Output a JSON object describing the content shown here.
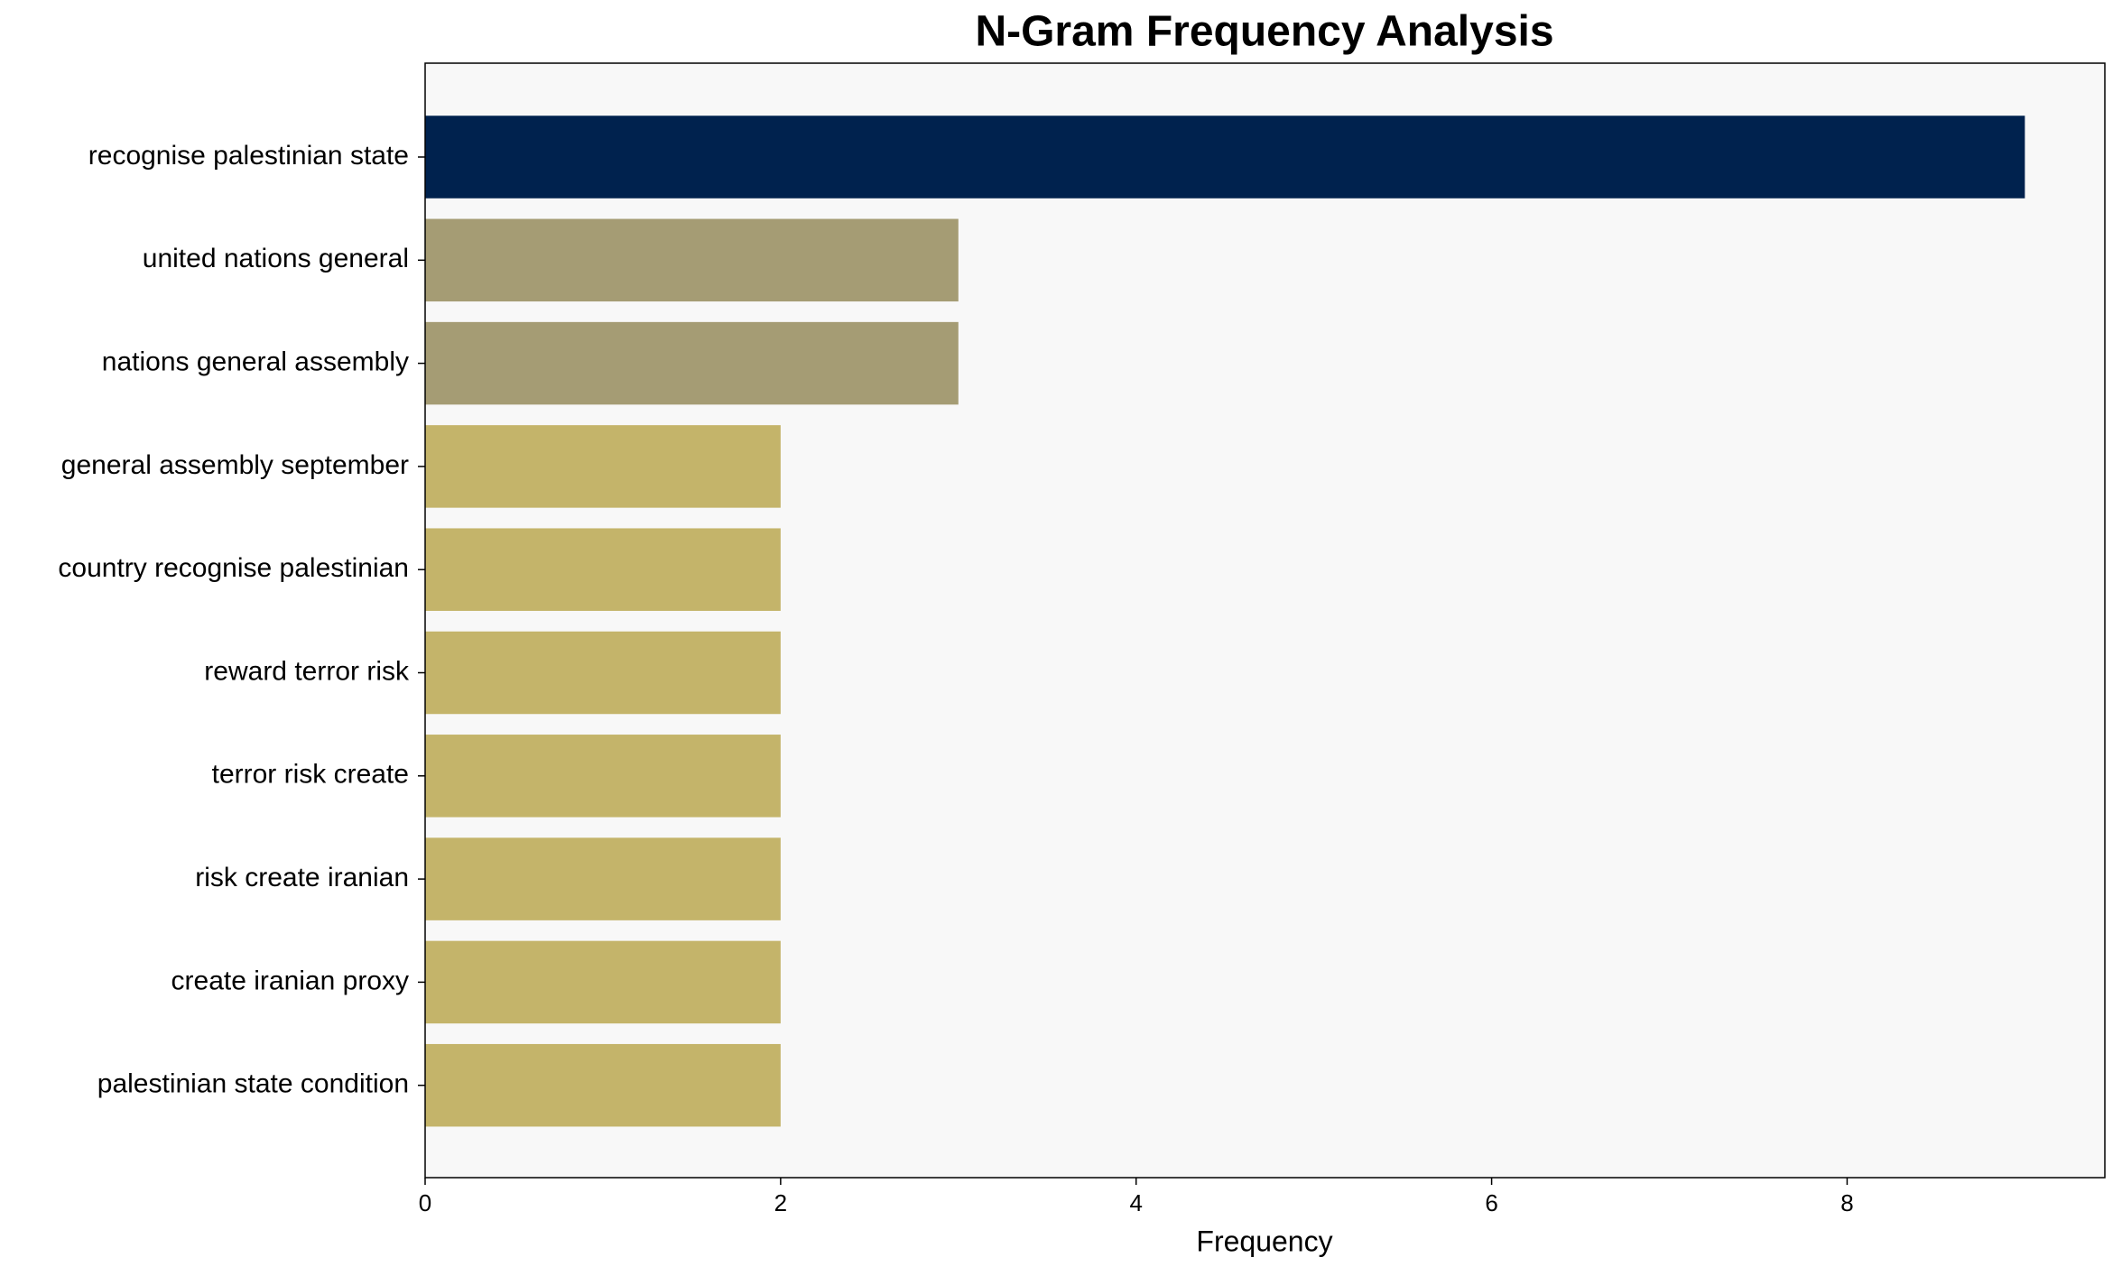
{
  "chart_data": {
    "type": "barh",
    "title": "N-Gram Frequency Analysis",
    "x_label": "Frequency",
    "categories": [
      "recognise palestinian state",
      "united nations general",
      "nations general assembly",
      "general assembly september",
      "country recognise palestinian",
      "reward terror risk",
      "terror risk create",
      "risk create iranian",
      "create iranian proxy",
      "palestinian state condition"
    ],
    "values": [
      9,
      3,
      3,
      2,
      2,
      2,
      2,
      2,
      2,
      2
    ],
    "colors": [
      "#00224e",
      "#a59c74",
      "#a59c74",
      "#c4b46a",
      "#c4b46a",
      "#c4b46a",
      "#c4b46a",
      "#c4b46a",
      "#c4b46a",
      "#c4b46a"
    ],
    "xlim": [
      0,
      9.45
    ],
    "xticks": [
      0,
      2,
      4,
      6,
      8
    ],
    "grid": false
  }
}
